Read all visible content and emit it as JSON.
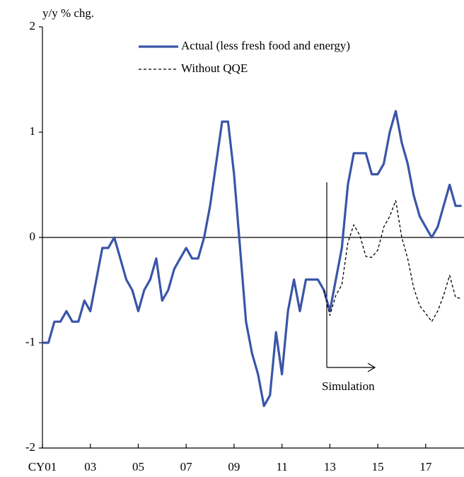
{
  "chart_data": {
    "type": "line",
    "y_label": "y/y % chg.",
    "annotation": "Simulation",
    "xlim": [
      2001,
      2018.6
    ],
    "xticks": [
      {
        "value": 2001,
        "label": "CY01"
      },
      {
        "value": 2003,
        "label": "03"
      },
      {
        "value": 2005,
        "label": "05"
      },
      {
        "value": 2007,
        "label": "07"
      },
      {
        "value": 2009,
        "label": "09"
      },
      {
        "value": 2011,
        "label": "11"
      },
      {
        "value": 2013,
        "label": "13"
      },
      {
        "value": 2015,
        "label": "15"
      },
      {
        "value": 2017,
        "label": "17"
      }
    ],
    "ylim": [
      -2,
      2
    ],
    "yticks": [
      -2,
      -1,
      0,
      1,
      2
    ],
    "series": [
      {
        "name": "Actual (less fresh food and energy)",
        "color": "#3a55a8",
        "dash": "solid",
        "x": [
          2001,
          2001.25,
          2001.5,
          2001.75,
          2002,
          2002.25,
          2002.5,
          2002.75,
          2003,
          2003.25,
          2003.5,
          2003.75,
          2004,
          2004.25,
          2004.5,
          2004.75,
          2005,
          2005.25,
          2005.5,
          2005.75,
          2006,
          2006.25,
          2006.5,
          2006.75,
          2007,
          2007.25,
          2007.5,
          2007.75,
          2008,
          2008.25,
          2008.5,
          2008.75,
          2009,
          2009.25,
          2009.5,
          2009.75,
          2010,
          2010.25,
          2010.5,
          2010.75,
          2011,
          2011.25,
          2011.5,
          2011.75,
          2012,
          2012.25,
          2012.5,
          2012.75,
          2013,
          2013.25,
          2013.5,
          2013.75,
          2014,
          2014.25,
          2014.5,
          2014.75,
          2015,
          2015.25,
          2015.5,
          2015.75,
          2016,
          2016.25,
          2016.5,
          2016.75,
          2017,
          2017.25,
          2017.5,
          2017.75,
          2018,
          2018.25,
          2018.5
        ],
        "values": [
          -1,
          -1,
          -0.8,
          -0.8,
          -0.7,
          -0.8,
          -0.8,
          -0.6,
          -0.7,
          -0.4,
          -0.1,
          -0.1,
          0,
          -0.2,
          -0.4,
          -0.5,
          -0.7,
          -0.5,
          -0.4,
          -0.2,
          -0.6,
          -0.5,
          -0.3,
          -0.2,
          -0.1,
          -0.2,
          -0.2,
          0,
          0.3,
          0.7,
          1.1,
          1.1,
          0.6,
          -0.1,
          -0.8,
          -1.1,
          -1.3,
          -1.6,
          -1.5,
          -0.9,
          -1.3,
          -0.7,
          -0.4,
          -0.7,
          -0.4,
          -0.4,
          -0.4,
          -0.5,
          -0.7,
          -0.4,
          -0.1,
          0.5,
          0.8,
          0.8,
          0.8,
          0.6,
          0.6,
          0.7,
          1.0,
          1.2,
          0.9,
          0.7,
          0.4,
          0.2,
          0.1,
          0,
          0.1,
          0.3,
          0.5,
          0.3,
          0.3
        ]
      },
      {
        "name": "Without QQE",
        "color": "#000000",
        "dash": "dashed",
        "x": [
          2012.75,
          2013,
          2013.25,
          2013.5,
          2013.75,
          2014,
          2014.25,
          2014.5,
          2014.75,
          2015,
          2015.25,
          2015.5,
          2015.75,
          2016,
          2016.25,
          2016.5,
          2016.75,
          2017,
          2017.25,
          2017.5,
          2017.75,
          2018,
          2018.25,
          2018.5
        ],
        "values": [
          -0.5,
          -0.74,
          -0.55,
          -0.45,
          -0.05,
          0.12,
          0.02,
          -0.18,
          -0.19,
          -0.12,
          0.1,
          0.2,
          0.35,
          0,
          -0.2,
          -0.48,
          -0.65,
          -0.72,
          -0.8,
          -0.7,
          -0.55,
          -0.36,
          -0.57,
          -0.58
        ]
      }
    ]
  }
}
